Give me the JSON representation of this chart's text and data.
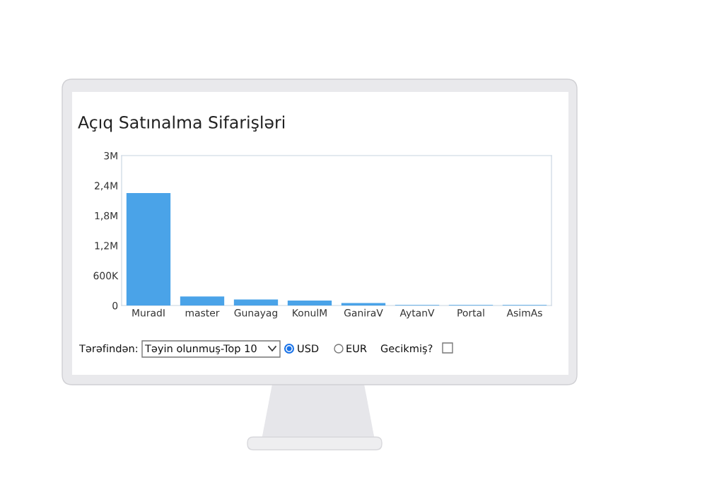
{
  "chart_data": {
    "type": "bar",
    "title": "Açıq Satınalma Sifarişləri",
    "categories": [
      "MuradI",
      "master",
      "Gunayag",
      "KonulM",
      "GaniraV",
      "AytanV",
      "Portal",
      "AsimAs"
    ],
    "values": [
      2250000,
      180000,
      120000,
      100000,
      50000,
      10000,
      10000,
      10000
    ],
    "color": "#4aa3e8",
    "ylim": [
      0,
      3000000
    ],
    "yticks": [
      0,
      {
        "value": 600000,
        "label": "600K"
      },
      {
        "value": 1200000,
        "label": "1,2M"
      },
      {
        "value": 1800000,
        "label": "1,8M"
      },
      {
        "value": 2400000,
        "label": "2,4M"
      },
      {
        "value": 3000000,
        "label": "3M"
      }
    ],
    "grid": false,
    "annotations": [
      "Tərəfindən:",
      "Təyin olunmuş-Top 10",
      "USD",
      "EUR",
      "Gecikmiş?"
    ]
  }
}
